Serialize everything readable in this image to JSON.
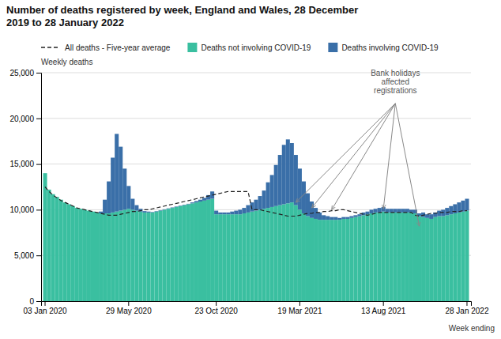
{
  "chart_data": {
    "type": "bar",
    "stacked": true,
    "title": "Number of deaths registered by week, England and Wales, 28 December\n2019 to 28 January 2022",
    "xlabel": "Week ending",
    "ylabel": "Weekly deaths",
    "grid": true,
    "legend": "top",
    "ylim": [
      0,
      25000
    ],
    "yticks": [
      0,
      {
        "value": 5000,
        "label": "5,000"
      },
      {
        "value": 10000,
        "label": "10,000"
      },
      {
        "value": 15000,
        "label": "15,000"
      },
      {
        "value": 20000,
        "label": "20,000"
      },
      {
        "value": 25000,
        "label": "25,000"
      }
    ],
    "categories": [
      "03 Jan 2020",
      null,
      null,
      null,
      null,
      null,
      null,
      null,
      null,
      null,
      null,
      null,
      null,
      null,
      null,
      null,
      null,
      null,
      null,
      null,
      null,
      "29 May 2020",
      null,
      null,
      null,
      null,
      null,
      null,
      null,
      null,
      null,
      null,
      null,
      null,
      null,
      null,
      null,
      null,
      null,
      null,
      null,
      null,
      null,
      "23 Oct 2020",
      null,
      null,
      null,
      null,
      null,
      null,
      null,
      null,
      null,
      null,
      null,
      null,
      null,
      null,
      null,
      null,
      null,
      null,
      null,
      null,
      "19 Mar 2021",
      null,
      null,
      null,
      null,
      null,
      null,
      null,
      null,
      null,
      null,
      null,
      null,
      null,
      null,
      null,
      null,
      null,
      null,
      null,
      null,
      "13 Aug 2021",
      null,
      null,
      null,
      null,
      null,
      null,
      null,
      null,
      null,
      null,
      null,
      null,
      null,
      null,
      null,
      null,
      null,
      null,
      null,
      null,
      "28 Jan 2022"
    ],
    "series": [
      {
        "name": "Deaths not involving COVID-19",
        "color": "#3ABFA0",
        "values": [
          14000,
          12200,
          11700,
          11400,
          11100,
          10800,
          10600,
          10400,
          10200,
          10100,
          10000,
          9900,
          9800,
          9700,
          9600,
          9600,
          9600,
          9700,
          9800,
          9900,
          10000,
          10100,
          10000,
          9900,
          9800,
          9700,
          9700,
          9700,
          9800,
          9900,
          10000,
          10100,
          10200,
          10300,
          10400,
          10500,
          10600,
          10700,
          10800,
          10900,
          11000,
          11100,
          11200,
          9500,
          9500,
          9500,
          9500,
          9500,
          9500,
          9500,
          9600,
          9700,
          9800,
          9900,
          10000,
          10100,
          10200,
          10300,
          10400,
          10500,
          10600,
          10700,
          10800,
          10500,
          10000,
          9600,
          9300,
          9100,
          9000,
          8900,
          8900,
          8900,
          8900,
          8900,
          8900,
          9000,
          9000,
          9100,
          9200,
          9300,
          9400,
          9500,
          9600,
          9700,
          9700,
          9800,
          9700,
          9700,
          9700,
          9700,
          9700,
          9700,
          9700,
          9600,
          9300,
          9200,
          9100,
          9000,
          9200,
          9300,
          9300,
          9400,
          9500,
          9600,
          9700,
          9800,
          9900
        ]
      },
      {
        "name": "Deaths involving COVID-19",
        "color": "#3A6FA8",
        "values": [
          0,
          0,
          0,
          0,
          0,
          0,
          0,
          0,
          0,
          0,
          0,
          0,
          0,
          0,
          200,
          1500,
          3500,
          6000,
          8500,
          7000,
          4500,
          2500,
          1200,
          600,
          300,
          150,
          100,
          50,
          50,
          50,
          50,
          50,
          50,
          50,
          50,
          50,
          50,
          100,
          150,
          200,
          300,
          500,
          800,
          400,
          200,
          200,
          200,
          300,
          400,
          500,
          600,
          800,
          1000,
          1200,
          1500,
          2000,
          2800,
          3500,
          4500,
          5500,
          6500,
          7000,
          6500,
          5500,
          4500,
          3500,
          2500,
          1800,
          1200,
          800,
          500,
          400,
          300,
          300,
          200,
          200,
          200,
          200,
          200,
          200,
          300,
          300,
          400,
          400,
          500,
          500,
          400,
          400,
          400,
          400,
          400,
          400,
          300,
          400,
          300,
          500,
          400,
          500,
          500,
          600,
          700,
          800,
          900,
          1000,
          1100,
          1200,
          1300
        ]
      },
      {
        "name": "All deaths - Five-year average",
        "type": "line",
        "line_style": "dashed",
        "color": "#222222",
        "values": [
          12500,
          12000,
          11600,
          11300,
          11000,
          10800,
          10600,
          10400,
          10200,
          10100,
          10000,
          9900,
          9800,
          9700,
          9600,
          9500,
          9400,
          9400,
          9400,
          9500,
          9600,
          9700,
          9800,
          9800,
          9900,
          10000,
          10000,
          10100,
          10200,
          10300,
          10400,
          10500,
          10600,
          10700,
          10800,
          10900,
          11000,
          11100,
          11200,
          11300,
          11400,
          11500,
          11600,
          11700,
          11800,
          11900,
          12000,
          12000,
          12000,
          12000,
          12000,
          12000,
          10000,
          10000,
          10000,
          9900,
          9800,
          9700,
          9600,
          9500,
          9400,
          9300,
          9300,
          9300,
          9400,
          9500,
          9600,
          9600,
          9700,
          9700,
          9800,
          9800,
          9900,
          9900,
          10000,
          10000,
          9900,
          9800,
          9700,
          9600,
          9500,
          9400,
          9500,
          9600,
          9700,
          9700,
          9700,
          9700,
          9700,
          9700,
          9700,
          9700,
          9700,
          9400,
          9300,
          9400,
          9500,
          9600,
          9600,
          9700,
          9700,
          9700,
          9800,
          9800,
          9800,
          9900,
          9900
        ]
      }
    ],
    "annotations": [
      {
        "text": "Bank holidays\naffected\nregistrations",
        "x": 88,
        "y": 22500,
        "targets": [
          {
            "x": 63,
            "y": 10800
          },
          {
            "x": 67,
            "y": 10200
          },
          {
            "x": 72,
            "y": 10000
          },
          {
            "x": 85,
            "y": 10100
          },
          {
            "x": 94,
            "y": 8200
          }
        ]
      }
    ]
  }
}
